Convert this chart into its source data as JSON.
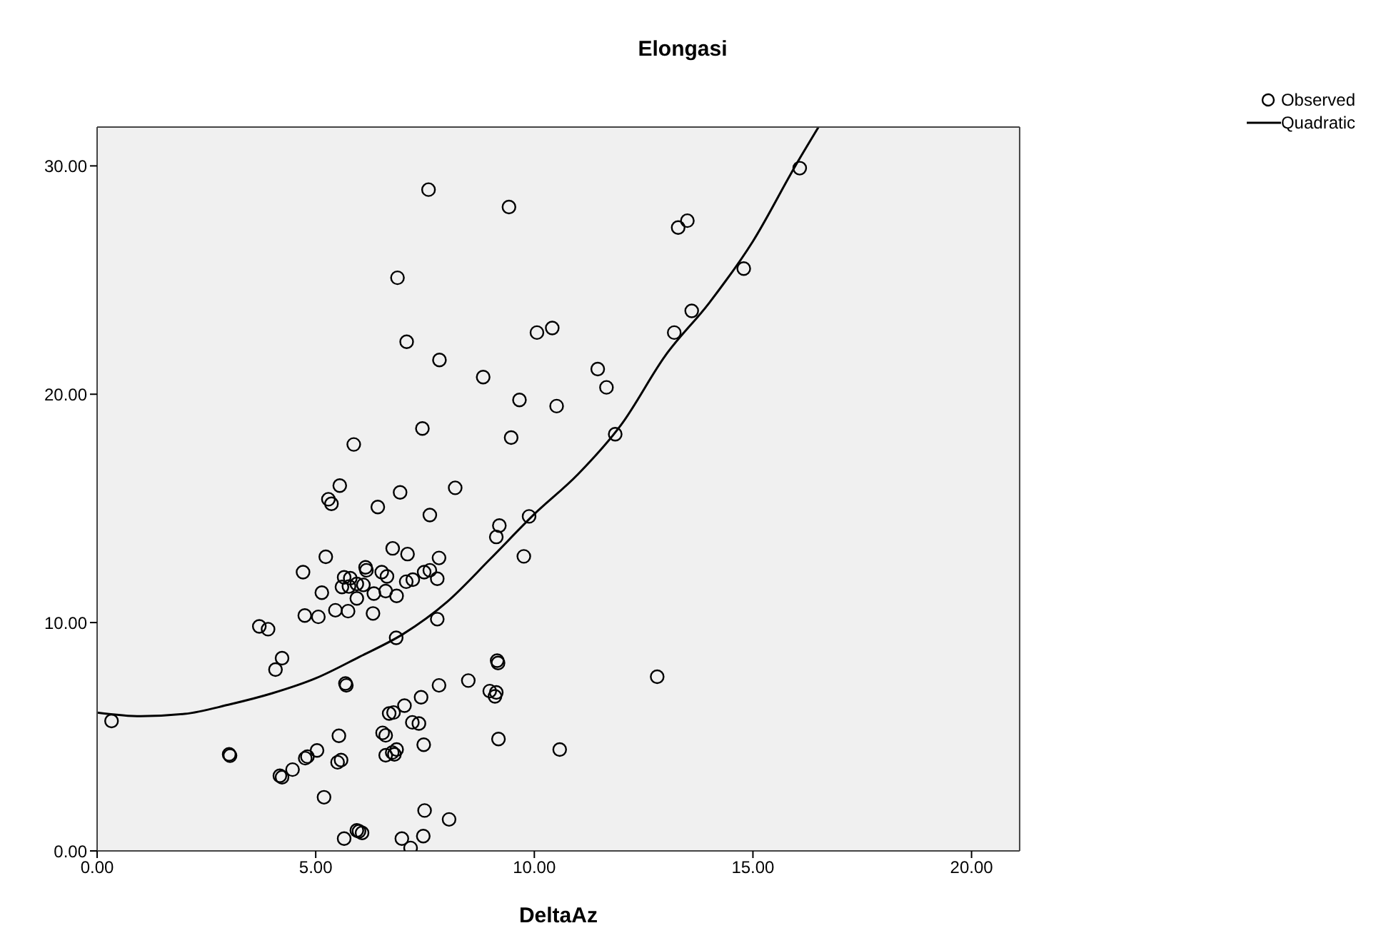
{
  "chart_data": {
    "type": "scatter",
    "title": "Elongasi",
    "xlabel": "DeltaAz",
    "xlim": [
      0,
      21.1
    ],
    "ylim": [
      0,
      31.7
    ],
    "xticks": [
      {
        "value": 0,
        "label": "0.00"
      },
      {
        "value": 5,
        "label": "5.00"
      },
      {
        "value": 10,
        "label": "10.00"
      },
      {
        "value": 15,
        "label": "15.00"
      },
      {
        "value": 20,
        "label": "20.00"
      }
    ],
    "yticks": [
      {
        "value": 0,
        "label": "0.00"
      },
      {
        "value": 10,
        "label": "10.00"
      },
      {
        "value": 20,
        "label": "20.00"
      },
      {
        "value": 30,
        "label": "30.00"
      }
    ],
    "grid": false,
    "legend": "top right",
    "series": [
      {
        "name": "Observed",
        "type": "scatter",
        "marker": "circle",
        "color": "#000000",
        "x": [
          7.58,
          9.42,
          6.87,
          10.06,
          10.41,
          7.08,
          7.83,
          8.83,
          9.66,
          10.51,
          7.44,
          9.47,
          5.87,
          5.55,
          5.29,
          5.36,
          6.93,
          8.19,
          16.07,
          13.29,
          13.5,
          14.79,
          13.6,
          13.2,
          11.45,
          11.65,
          11.85,
          9.88,
          9.76,
          12.81,
          10.58,
          6.42,
          7.61,
          9.2,
          9.13,
          6.76,
          7.1,
          5.23,
          7.82,
          4.71,
          5.65,
          5.79,
          6.14,
          6.16,
          6.51,
          6.63,
          7.07,
          7.22,
          7.48,
          7.61,
          7.78,
          5.6,
          5.76,
          5.94,
          6.09,
          5.14,
          5.94,
          6.33,
          6.6,
          6.85,
          5.45,
          5.74,
          6.31,
          4.75,
          5.06,
          3.71,
          3.91,
          7.78,
          6.84,
          4.23,
          4.08,
          5.68,
          5.7,
          9.15,
          9.17,
          7.82,
          8.49,
          8.98,
          9.13,
          9.1,
          9.18,
          7.41,
          7.03,
          6.78,
          6.68,
          7.21,
          7.36,
          6.53,
          6.6,
          7.47,
          6.6,
          6.75,
          6.85,
          6.8,
          5.53,
          5.5,
          5.58,
          5.03,
          4.81,
          4.76,
          4.47,
          4.18,
          4.23,
          3.02,
          3.04,
          0.33,
          5.19,
          5.65,
          5.94,
          6.06,
          5.99,
          6.97,
          7.17,
          7.46,
          7.49,
          8.05
        ],
        "values": [
          28.96,
          28.2,
          25.1,
          22.7,
          22.9,
          22.3,
          21.5,
          20.75,
          19.75,
          19.48,
          18.5,
          18.1,
          17.8,
          16.0,
          15.4,
          15.2,
          15.7,
          15.9,
          29.9,
          27.3,
          27.6,
          25.5,
          23.65,
          22.7,
          21.1,
          20.3,
          18.25,
          14.65,
          12.9,
          7.63,
          4.44,
          15.06,
          14.71,
          14.25,
          13.75,
          13.25,
          13.0,
          12.88,
          12.83,
          12.21,
          11.98,
          11.94,
          12.42,
          12.29,
          12.21,
          12.02,
          11.79,
          11.88,
          12.21,
          12.29,
          11.92,
          11.56,
          11.58,
          11.69,
          11.65,
          11.31,
          11.06,
          11.27,
          11.38,
          11.17,
          10.54,
          10.5,
          10.4,
          10.31,
          10.25,
          9.83,
          9.71,
          10.15,
          9.33,
          8.44,
          7.94,
          7.33,
          7.25,
          8.33,
          8.23,
          7.25,
          7.46,
          7.0,
          6.94,
          6.77,
          4.9,
          6.73,
          6.36,
          6.06,
          6.02,
          5.63,
          5.58,
          5.17,
          5.06,
          4.65,
          4.19,
          4.31,
          4.44,
          4.23,
          5.04,
          3.88,
          3.98,
          4.4,
          4.13,
          4.06,
          3.56,
          3.29,
          3.23,
          4.23,
          4.17,
          5.69,
          2.35,
          0.54,
          0.9,
          0.79,
          0.86,
          0.54,
          0.13,
          0.65,
          1.77,
          1.38
        ]
      },
      {
        "name": "Quadratic",
        "type": "line",
        "marker": "none",
        "line_style": "solid",
        "color": "#000000",
        "x": [
          0,
          1,
          2,
          3,
          4,
          5,
          6,
          7,
          8,
          9,
          10,
          11,
          12,
          13,
          14,
          15,
          16,
          16.5
        ],
        "values": [
          6.06,
          5.9,
          6.0,
          6.4,
          6.9,
          7.56,
          8.5,
          9.5,
          10.9,
          12.8,
          14.75,
          16.5,
          18.7,
          21.7,
          24.0,
          26.7,
          30.1,
          31.7
        ]
      }
    ]
  }
}
